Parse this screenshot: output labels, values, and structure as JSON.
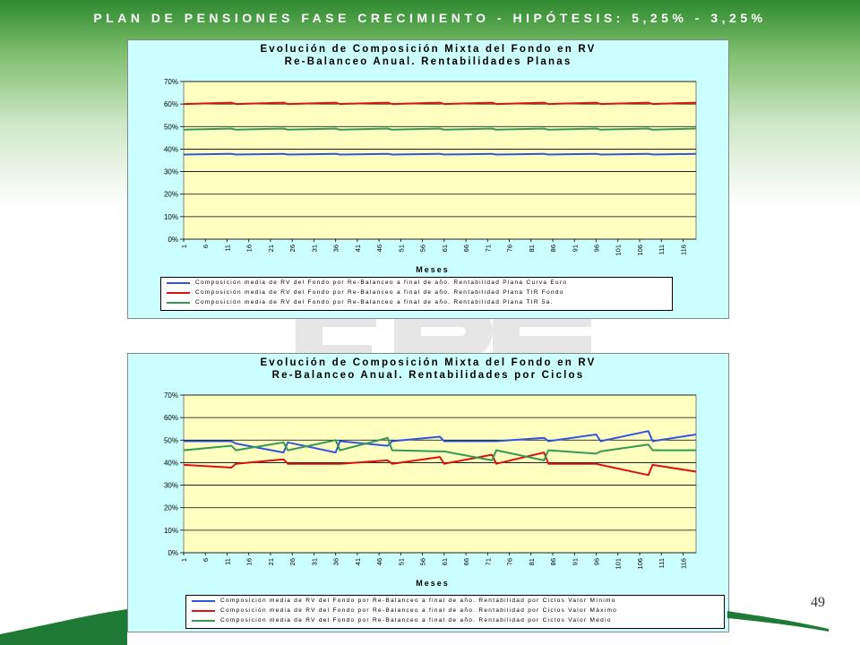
{
  "slide": {
    "title": "PLAN DE PENSIONES FASE CRECIMIENTO  - HIPÓTESIS: 5,25%  - 3,25%",
    "page_number": "49",
    "colors": {
      "header_green": "#2e8a2e",
      "plot_bg": "#ffffc0",
      "chart_bg": "#ccffff"
    }
  },
  "chart_data": [
    {
      "type": "line",
      "title": "Evolución de Composición Mixta del Fondo en RV",
      "subtitle": "Re-Balanceo Anual. Rentabilidades Planas",
      "xlabel": "Meses",
      "ylabel": "",
      "x_start": 1,
      "x_end": 119,
      "x_tick_labels": [
        "1",
        "6",
        "11",
        "16",
        "21",
        "26",
        "31",
        "36",
        "41",
        "46",
        "51",
        "56",
        "61",
        "66",
        "71",
        "76",
        "81",
        "86",
        "91",
        "96",
        "101",
        "106",
        "111",
        "116"
      ],
      "y_tick_labels": [
        "0%",
        "10%",
        "20%",
        "30%",
        "40%",
        "50%",
        "60%",
        "70%"
      ],
      "ylim": [
        0,
        70
      ],
      "grid": "horizontal",
      "legend_position": "bottom",
      "series": [
        {
          "name": "Composición media de RV del Fondo por Re-Balanceo a final de año. Rentabilidad Plana Curva Euro",
          "color": "#3355dd",
          "keypoints": [
            [
              1,
              37.6
            ],
            [
              12,
              37.9
            ],
            [
              13,
              37.6
            ],
            [
              24,
              37.9
            ],
            [
              25,
              37.6
            ],
            [
              36,
              37.9
            ],
            [
              37,
              37.6
            ],
            [
              48,
              37.9
            ],
            [
              49,
              37.6
            ],
            [
              60,
              37.9
            ],
            [
              61,
              37.6
            ],
            [
              72,
              37.9
            ],
            [
              73,
              37.6
            ],
            [
              84,
              37.9
            ],
            [
              85,
              37.6
            ],
            [
              96,
              37.9
            ],
            [
              97,
              37.6
            ],
            [
              108,
              37.9
            ],
            [
              109,
              37.6
            ],
            [
              119,
              37.9
            ]
          ]
        },
        {
          "name": "Composición media de RV del Fondo por Re-Balanceo a final de año. Rentabilidad Plana TIR Fondo",
          "color": "#dd1111",
          "keypoints": [
            [
              1,
              60.0
            ],
            [
              12,
              60.6
            ],
            [
              13,
              60.0
            ],
            [
              24,
              60.6
            ],
            [
              25,
              60.0
            ],
            [
              36,
              60.6
            ],
            [
              37,
              60.0
            ],
            [
              48,
              60.6
            ],
            [
              49,
              60.0
            ],
            [
              60,
              60.6
            ],
            [
              61,
              60.0
            ],
            [
              72,
              60.6
            ],
            [
              73,
              60.0
            ],
            [
              84,
              60.6
            ],
            [
              85,
              60.0
            ],
            [
              96,
              60.6
            ],
            [
              97,
              60.0
            ],
            [
              108,
              60.6
            ],
            [
              109,
              60.0
            ],
            [
              119,
              60.6
            ]
          ]
        },
        {
          "name": "Composición media de RV del Fondo por Re-Balanceo a final de año. Rentabilidad Plana TIR 5a.",
          "color": "#339955",
          "keypoints": [
            [
              1,
              48.6
            ],
            [
              12,
              49.1
            ],
            [
              13,
              48.6
            ],
            [
              24,
              49.1
            ],
            [
              25,
              48.6
            ],
            [
              36,
              49.1
            ],
            [
              37,
              48.6
            ],
            [
              48,
              49.1
            ],
            [
              49,
              48.6
            ],
            [
              60,
              49.1
            ],
            [
              61,
              48.6
            ],
            [
              72,
              49.1
            ],
            [
              73,
              48.6
            ],
            [
              84,
              49.1
            ],
            [
              85,
              48.6
            ],
            [
              96,
              49.1
            ],
            [
              97,
              48.6
            ],
            [
              108,
              49.1
            ],
            [
              109,
              48.6
            ],
            [
              119,
              49.1
            ]
          ]
        }
      ]
    },
    {
      "type": "line",
      "title": "Evolución de Composición Mixta del Fondo en RV",
      "subtitle": "Re-Balanceo Anual. Rentabilidades por Ciclos",
      "xlabel": "Meses",
      "ylabel": "",
      "x_start": 1,
      "x_end": 119,
      "x_tick_labels": [
        "1",
        "6",
        "11",
        "16",
        "21",
        "26",
        "31",
        "36",
        "41",
        "46",
        "51",
        "56",
        "61",
        "66",
        "71",
        "76",
        "81",
        "86",
        "91",
        "96",
        "101",
        "106",
        "111",
        "116"
      ],
      "y_tick_labels": [
        "0%",
        "10%",
        "20%",
        "30%",
        "40%",
        "50%",
        "60%",
        "70%"
      ],
      "ylim": [
        0,
        70
      ],
      "grid": "horizontal",
      "legend_position": "bottom",
      "series": [
        {
          "name": "Composición media de RV del Fondo por Re-Balanceo a final de año. Rentabilidad por Ciclos Valor Mínimo",
          "color": "#3355dd",
          "keypoints": [
            [
              1,
              49.5
            ],
            [
              12,
              49.5
            ],
            [
              13,
              48.5
            ],
            [
              24,
              44.5
            ],
            [
              25,
              49.0
            ],
            [
              36,
              44.5
            ],
            [
              37,
              49.5
            ],
            [
              48,
              47.5
            ],
            [
              49,
              49.5
            ],
            [
              60,
              51.5
            ],
            [
              61,
              49.5
            ],
            [
              72,
              49.5
            ],
            [
              73,
              49.5
            ],
            [
              84,
              51.0
            ],
            [
              85,
              49.5
            ],
            [
              96,
              52.5
            ],
            [
              97,
              49.5
            ],
            [
              108,
              54.0
            ],
            [
              109,
              49.5
            ],
            [
              119,
              52.5
            ]
          ]
        },
        {
          "name": "Composición media de RV del Fondo por Re-Balanceo a final de año. Rentabilidad por Ciclos Valor Máximo",
          "color": "#dd1111",
          "keypoints": [
            [
              1,
              39.0
            ],
            [
              12,
              37.8
            ],
            [
              13,
              39.5
            ],
            [
              24,
              41.5
            ],
            [
              25,
              39.5
            ],
            [
              36,
              39.5
            ],
            [
              37,
              39.5
            ],
            [
              48,
              41.0
            ],
            [
              49,
              39.5
            ],
            [
              60,
              42.5
            ],
            [
              61,
              39.5
            ],
            [
              72,
              43.5
            ],
            [
              73,
              39.5
            ],
            [
              84,
              44.5
            ],
            [
              85,
              39.5
            ],
            [
              96,
              39.5
            ],
            [
              97,
              39.0
            ],
            [
              108,
              34.5
            ],
            [
              109,
              39.0
            ],
            [
              119,
              36.0
            ]
          ]
        },
        {
          "name": "Composición media de RV del Fondo por Re-Balanceo a final de año. Rentabilidad por Ciclos Valor Medio",
          "color": "#339955",
          "keypoints": [
            [
              1,
              45.5
            ],
            [
              12,
              47.5
            ],
            [
              13,
              45.5
            ],
            [
              24,
              49.0
            ],
            [
              25,
              45.5
            ],
            [
              36,
              50.0
            ],
            [
              37,
              45.5
            ],
            [
              48,
              51.0
            ],
            [
              49,
              45.5
            ],
            [
              60,
              45.0
            ],
            [
              61,
              45.0
            ],
            [
              72,
              41.0
            ],
            [
              73,
              45.5
            ],
            [
              84,
              41.0
            ],
            [
              85,
              45.5
            ],
            [
              96,
              44.0
            ],
            [
              97,
              45.0
            ],
            [
              108,
              48.0
            ],
            [
              109,
              45.5
            ],
            [
              119,
              45.5
            ]
          ]
        }
      ]
    }
  ]
}
